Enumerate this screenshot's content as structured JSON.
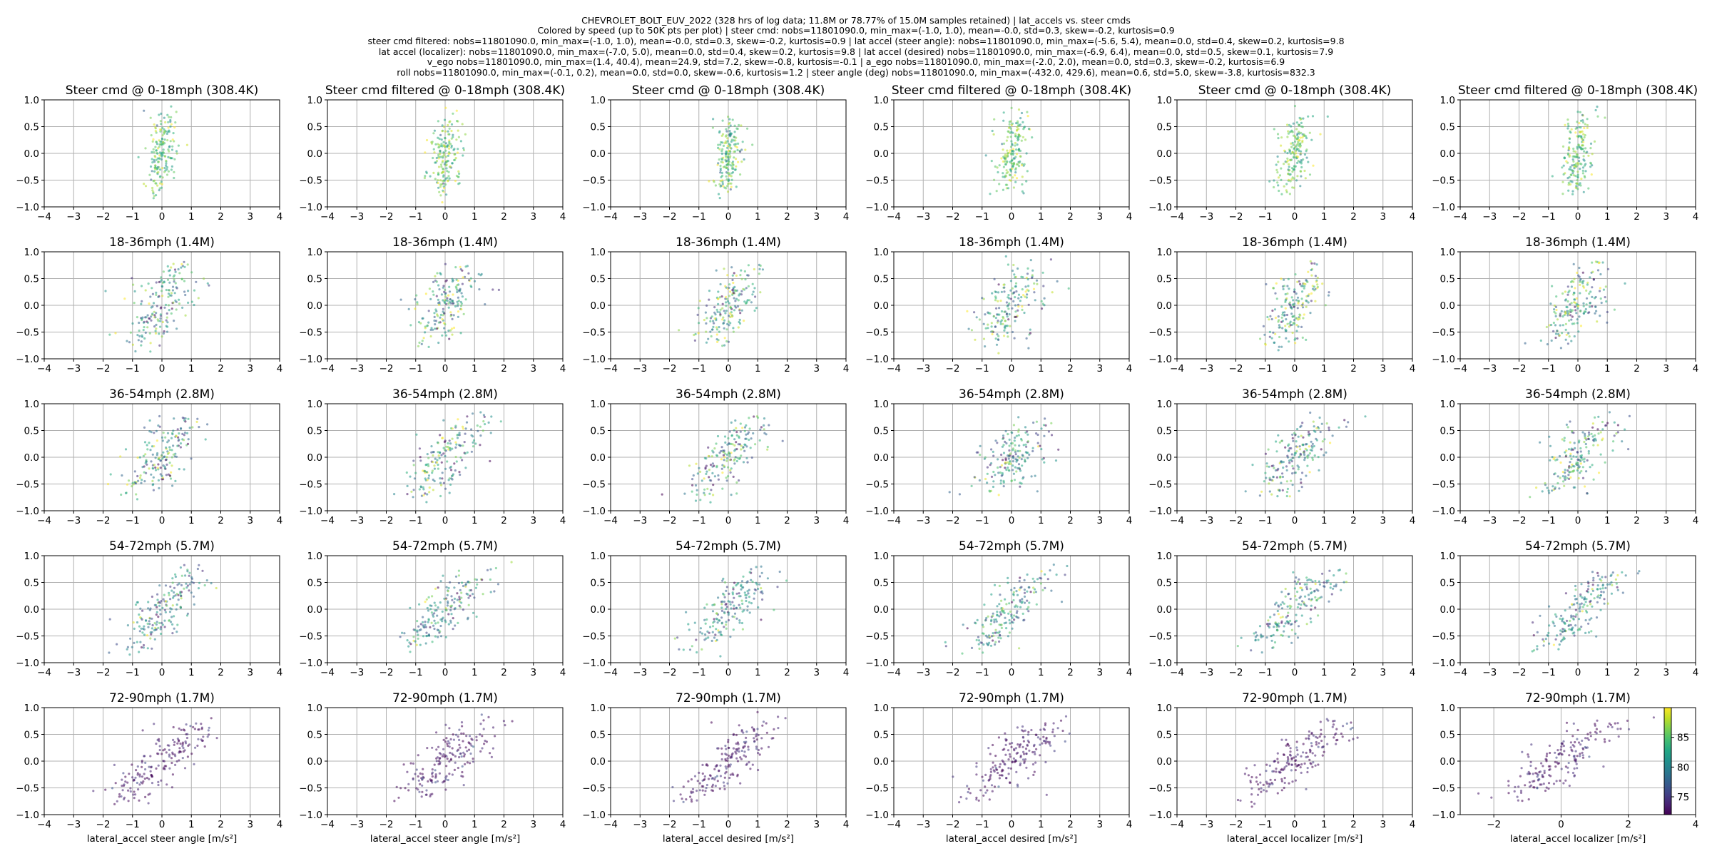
{
  "figure": {
    "title_lines": [
      "CHEVROLET_BOLT_EUV_2022 (328 hrs of log data; 11.8M or 78.77% of 15.0M samples retained) | lat_accels vs. steer cmds",
      "Colored by  speed (up to 50K pts per plot) | steer cmd: nobs=11801090.0, min_max=(-1.0, 1.0), mean=-0.0, std=0.3, skew=-0.2, kurtosis=0.9",
      "steer cmd filtered: nobs=11801090.0, min_max=(-1.0, 1.0), mean=-0.0, std=0.3, skew=-0.2, kurtosis=0.9 | lat accel (steer angle): nobs=11801090.0, min_max=(-5.6, 5.4), mean=0.0, std=0.4, skew=0.2, kurtosis=9.8",
      "lat accel (localizer): nobs=11801090.0, min_max=(-7.0, 5.0), mean=0.0, std=0.4, skew=0.2, kurtosis=9.8 | lat accel (desired) nobs=11801090.0, min_max=(-6.9, 6.4), mean=0.0, std=0.5, skew=0.1, kurtosis=7.9",
      "v_ego nobs=11801090.0, min_max=(1.4, 40.4), mean=24.9, std=7.2, skew=-0.8, kurtosis=-0.1 | a_ego nobs=11801090.0, min_max=(-2.0, 2.0), mean=0.0, std=0.3, skew=-0.2, kurtosis=6.9",
      "roll nobs=11801090.0, min_max=(-0.1, 0.2), mean=0.0, std=0.0, skew=-0.6, kurtosis=1.2 | steer angle (deg) nobs=11801090.0, min_max=(-432.0, 429.6), mean=0.6, std=5.0, skew=-3.8, kurtosis=832.3"
    ]
  },
  "chart_data": {
    "type": "scatter",
    "color_by": "speed",
    "colorbar": {
      "ticks": [
        75,
        80,
        85
      ],
      "range": [
        72,
        90
      ],
      "colormap": "viridis"
    },
    "xlim": [
      -4,
      4
    ],
    "ylim": [
      -1.0,
      1.0
    ],
    "x_ticks": [
      "−4",
      "−3",
      "−2",
      "−1",
      "0",
      "1",
      "2",
      "3",
      "4"
    ],
    "y_ticks": [
      "1.0",
      "0.5",
      "0.0",
      "−0.5",
      "−1.0"
    ],
    "grid": true,
    "columns": [
      {
        "xlabel": "lateral_accel steer angle [m/s²]",
        "first_title": "Steer cmd @ 0-18mph (308.4K)",
        "bottom_xlim": [
          -4,
          4
        ]
      },
      {
        "xlabel": "lateral_accel steer angle [m/s²]",
        "first_title": "Steer cmd filtered @ 0-18mph (308.4K)",
        "bottom_xlim": [
          -4,
          4
        ]
      },
      {
        "xlabel": "lateral_accel desired [m/s²]",
        "first_title": "Steer cmd @ 0-18mph (308.4K)",
        "bottom_xlim": [
          -4,
          4
        ]
      },
      {
        "xlabel": "lateral_accel desired [m/s²]",
        "first_title": "Steer cmd filtered @ 0-18mph (308.4K)",
        "bottom_xlim": [
          -4,
          4
        ]
      },
      {
        "xlabel": "lateral_accel localizer [m/s²]",
        "first_title": "Steer cmd @ 0-18mph (308.4K)",
        "bottom_xlim": [
          -4,
          4
        ]
      },
      {
        "xlabel": "lateral_accel localizer [m/s²]",
        "first_title": "Steer cmd filtered @ 0-18mph (308.4K)",
        "bottom_xlim": [
          -3,
          4
        ],
        "bottom_x_ticks": [
          "−2",
          "0",
          "2",
          "4"
        ]
      }
    ],
    "rows": [
      {
        "title": "Steer cmd @ 0-18mph (308.4K)",
        "speed_range": [
          0,
          18
        ],
        "slope": 4.5,
        "spread": 0.25,
        "color_mean": 85,
        "color_spread": 3
      },
      {
        "title": "18-36mph (1.4M)",
        "speed_range": [
          18,
          36
        ],
        "slope": 1.4,
        "spread": 0.45,
        "color_mean": 82,
        "color_spread": 5
      },
      {
        "title": "36-54mph (2.8M)",
        "speed_range": [
          36,
          54
        ],
        "slope": 0.9,
        "spread": 0.5,
        "color_mean": 81,
        "color_spread": 5
      },
      {
        "title": "54-72mph (5.7M)",
        "speed_range": [
          54,
          72
        ],
        "slope": 0.7,
        "spread": 0.45,
        "color_mean": 80,
        "color_spread": 4
      },
      {
        "title": "72-90mph (1.7M)",
        "speed_range": [
          72,
          90
        ],
        "slope": 0.55,
        "spread": 0.5,
        "color_mean": 73,
        "color_spread": 1.5
      }
    ]
  }
}
